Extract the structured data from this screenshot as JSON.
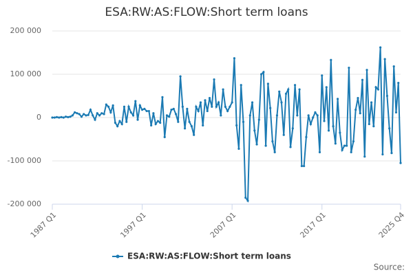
{
  "chart_data": {
    "type": "line",
    "title": "ESA:RW:AS:FLOW:Short term loans",
    "source": "Source:",
    "categories": [
      "1987 Q1",
      null,
      null,
      null,
      null,
      null,
      null,
      null,
      null,
      null,
      null,
      null,
      null,
      null,
      null,
      null,
      null,
      null,
      null,
      null,
      null,
      null,
      null,
      null,
      null,
      null,
      null,
      null,
      null,
      null,
      null,
      null,
      null,
      null,
      null,
      null,
      null,
      null,
      null,
      null,
      "1997 Q1",
      null,
      null,
      null,
      null,
      null,
      null,
      null,
      null,
      null,
      null,
      null,
      null,
      null,
      null,
      null,
      null,
      null,
      null,
      null,
      null,
      null,
      null,
      null,
      null,
      null,
      null,
      null,
      null,
      null,
      null,
      null,
      null,
      null,
      null,
      null,
      null,
      null,
      null,
      null,
      "2007 Q1",
      null,
      null,
      null,
      null,
      null,
      null,
      null,
      null,
      null,
      null,
      null,
      null,
      null,
      null,
      null,
      null,
      null,
      null,
      null,
      null,
      null,
      null,
      null,
      null,
      null,
      null,
      null,
      null,
      null,
      null,
      null,
      null,
      null,
      null,
      null,
      null,
      null,
      null,
      null,
      "2017 Q1",
      null,
      null,
      null,
      null,
      null,
      null,
      null,
      null,
      null,
      null,
      null,
      null,
      null,
      null,
      null,
      null,
      null,
      null,
      null,
      null,
      null,
      null,
      null,
      null,
      null,
      null,
      null,
      null,
      null,
      null,
      null,
      null,
      null,
      null,
      "2025 Q4"
    ],
    "series": [
      {
        "name": "ESA:RW:AS:FLOW:Short term loans",
        "color": "#1b7ab3",
        "values": [
          0,
          0,
          1000,
          0,
          1000,
          0,
          2000,
          1000,
          2000,
          5000,
          12000,
          10000,
          8000,
          2000,
          8000,
          5000,
          6000,
          18000,
          5000,
          -5000,
          10000,
          5000,
          10000,
          8000,
          30000,
          25000,
          12000,
          28000,
          -12000,
          -20000,
          -8000,
          -15000,
          25000,
          -10000,
          25000,
          12000,
          5000,
          38000,
          -5000,
          28000,
          18000,
          20000,
          15000,
          15000,
          -18000,
          10000,
          -15000,
          -8000,
          -12000,
          47000,
          -45000,
          5000,
          2000,
          18000,
          20000,
          8000,
          -10000,
          95000,
          25000,
          -25000,
          20000,
          -10000,
          -20000,
          -40000,
          25000,
          15000,
          35000,
          -18000,
          40000,
          15000,
          45000,
          25000,
          88000,
          25000,
          35000,
          5000,
          65000,
          25000,
          15000,
          25000,
          35000,
          137000,
          -18000,
          -72000,
          75000,
          -10000,
          -185000,
          -192000,
          5000,
          35000,
          -30000,
          -62000,
          -5000,
          100000,
          105000,
          -65000,
          78000,
          22000,
          -55000,
          -80000,
          5000,
          60000,
          35000,
          -40000,
          55000,
          65000,
          -68000,
          -25000,
          75000,
          5000,
          65000,
          -112000,
          -112000,
          -45000,
          5000,
          -15000,
          0,
          12000,
          5000,
          -80000,
          97000,
          -8000,
          70000,
          -30000,
          133000,
          -20000,
          -60000,
          43000,
          -35000,
          -75000,
          -65000,
          -65000,
          115000,
          -80000,
          -55000,
          18000,
          45000,
          10000,
          87000,
          -90000,
          110000,
          -15000,
          35000,
          -20000,
          70000,
          65000,
          162000,
          -85000,
          135000,
          50000,
          -25000,
          -82000,
          118000,
          12000,
          80000,
          -105000
        ]
      }
    ],
    "ylim": [
      -200000,
      200000
    ],
    "yticks": [
      {
        "value": -200000,
        "label": "-200 000"
      },
      {
        "value": -100000,
        "label": "-100 000"
      },
      0,
      {
        "value": 100000,
        "label": "100 000"
      },
      {
        "value": 200000,
        "label": "200 000"
      }
    ],
    "grid": true
  }
}
